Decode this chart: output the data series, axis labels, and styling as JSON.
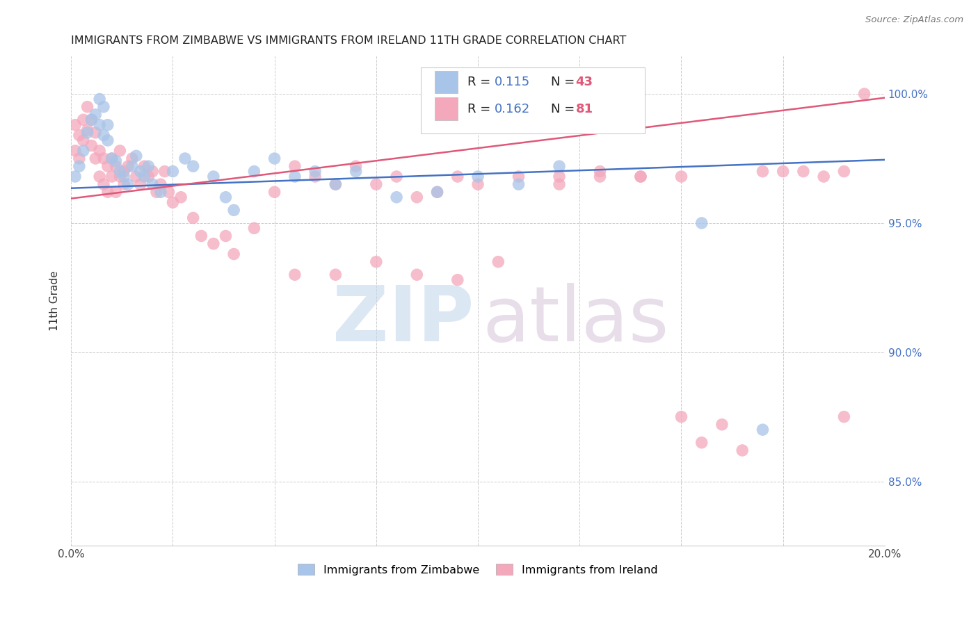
{
  "title": "IMMIGRANTS FROM ZIMBABWE VS IMMIGRANTS FROM IRELAND 11TH GRADE CORRELATION CHART",
  "source": "Source: ZipAtlas.com",
  "ylabel": "11th Grade",
  "ytick_labels": [
    "85.0%",
    "90.0%",
    "95.0%",
    "100.0%"
  ],
  "ytick_values": [
    0.85,
    0.9,
    0.95,
    1.0
  ],
  "xmin": 0.0,
  "xmax": 0.2,
  "ymin": 0.825,
  "ymax": 1.015,
  "color_zimbabwe": "#a8c4e8",
  "color_ireland": "#f4a8bc",
  "color_line_zimbabwe": "#4472c4",
  "color_line_ireland": "#e05878",
  "watermark_color_ZIP": "#c5d8ee",
  "watermark_color_atlas": "#d8c8dc",
  "zim_line_y0": 0.9635,
  "zim_line_y1": 0.9745,
  "ire_line_y0": 0.9595,
  "ire_line_y1": 0.9985,
  "zimbabwe_x": [
    0.001,
    0.002,
    0.003,
    0.004,
    0.005,
    0.006,
    0.007,
    0.007,
    0.008,
    0.008,
    0.009,
    0.009,
    0.01,
    0.011,
    0.012,
    0.013,
    0.014,
    0.015,
    0.016,
    0.017,
    0.018,
    0.019,
    0.02,
    0.022,
    0.025,
    0.028,
    0.03,
    0.035,
    0.038,
    0.04,
    0.045,
    0.05,
    0.055,
    0.06,
    0.065,
    0.07,
    0.08,
    0.09,
    0.1,
    0.11,
    0.12,
    0.155,
    0.17
  ],
  "zimbabwe_y": [
    0.968,
    0.972,
    0.978,
    0.985,
    0.99,
    0.992,
    0.988,
    0.998,
    0.995,
    0.984,
    0.982,
    0.988,
    0.975,
    0.974,
    0.97,
    0.968,
    0.965,
    0.972,
    0.976,
    0.97,
    0.968,
    0.972,
    0.965,
    0.962,
    0.97,
    0.975,
    0.972,
    0.968,
    0.96,
    0.955,
    0.97,
    0.975,
    0.968,
    0.97,
    0.965,
    0.97,
    0.96,
    0.962,
    0.968,
    0.965,
    0.972,
    0.95,
    0.87
  ],
  "ireland_x": [
    0.001,
    0.001,
    0.002,
    0.002,
    0.003,
    0.003,
    0.004,
    0.004,
    0.005,
    0.005,
    0.006,
    0.006,
    0.007,
    0.007,
    0.008,
    0.008,
    0.009,
    0.009,
    0.01,
    0.01,
    0.011,
    0.011,
    0.012,
    0.012,
    0.013,
    0.013,
    0.014,
    0.015,
    0.016,
    0.017,
    0.018,
    0.019,
    0.02,
    0.021,
    0.022,
    0.023,
    0.024,
    0.025,
    0.027,
    0.03,
    0.032,
    0.035,
    0.038,
    0.04,
    0.045,
    0.05,
    0.055,
    0.06,
    0.065,
    0.07,
    0.075,
    0.08,
    0.085,
    0.09,
    0.095,
    0.1,
    0.11,
    0.12,
    0.13,
    0.14,
    0.15,
    0.155,
    0.16,
    0.165,
    0.17,
    0.175,
    0.18,
    0.185,
    0.19,
    0.195,
    0.055,
    0.065,
    0.075,
    0.085,
    0.095,
    0.105,
    0.12,
    0.13,
    0.14,
    0.15,
    0.19
  ],
  "ireland_y": [
    0.988,
    0.978,
    0.984,
    0.975,
    0.99,
    0.982,
    0.986,
    0.995,
    0.99,
    0.98,
    0.985,
    0.975,
    0.978,
    0.968,
    0.975,
    0.965,
    0.972,
    0.962,
    0.968,
    0.975,
    0.972,
    0.962,
    0.968,
    0.978,
    0.97,
    0.965,
    0.972,
    0.975,
    0.968,
    0.965,
    0.972,
    0.968,
    0.97,
    0.962,
    0.965,
    0.97,
    0.962,
    0.958,
    0.96,
    0.952,
    0.945,
    0.942,
    0.945,
    0.938,
    0.948,
    0.962,
    0.972,
    0.968,
    0.965,
    0.972,
    0.965,
    0.968,
    0.96,
    0.962,
    0.968,
    0.965,
    0.968,
    0.965,
    0.97,
    0.968,
    0.875,
    0.865,
    0.872,
    0.862,
    0.97,
    0.97,
    0.97,
    0.968,
    0.97,
    1.0,
    0.93,
    0.93,
    0.935,
    0.93,
    0.928,
    0.935,
    0.968,
    0.968,
    0.968,
    0.968,
    0.875
  ]
}
